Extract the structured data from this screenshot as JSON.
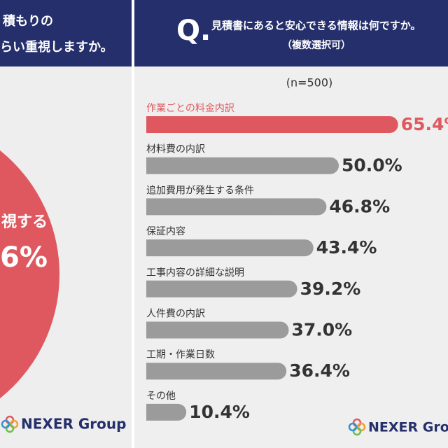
{
  "left_panel": {
    "title_lines": [
      "積もりの",
      "らい重視しますか。"
    ],
    "label": "視する",
    "value_text": "6%",
    "logo": "NEXER Group"
  },
  "chart_data": {
    "type": "hbar",
    "title_mark": "Q.",
    "title": "見積書にあると安心できる情報は何ですか。",
    "subtitle": "（複数選択可）",
    "note": "(n=500)",
    "categories": [
      "作業ごとの料金内訳",
      "材料費の内訳",
      "追加費用が発生する条件",
      "保証内容",
      "工事内容の詳細な説明",
      "人件費の内訳",
      "工期・作業日数",
      "その他"
    ],
    "values": [
      65.4,
      50.0,
      46.8,
      43.4,
      39.2,
      37.0,
      36.4,
      10.4
    ],
    "value_labels": [
      "65.4%",
      "50.0%",
      "46.8%",
      "43.4%",
      "39.2%",
      "37.0%",
      "36.4%",
      "10.4%"
    ],
    "colors": [
      "#e0585f",
      "#9b9b9b",
      "#9b9b9b",
      "#9b9b9b",
      "#9b9b9b",
      "#9b9b9b",
      "#9b9b9b",
      "#9b9b9b"
    ],
    "xlim": [
      0,
      100
    ],
    "logo": "NEXER Group"
  }
}
